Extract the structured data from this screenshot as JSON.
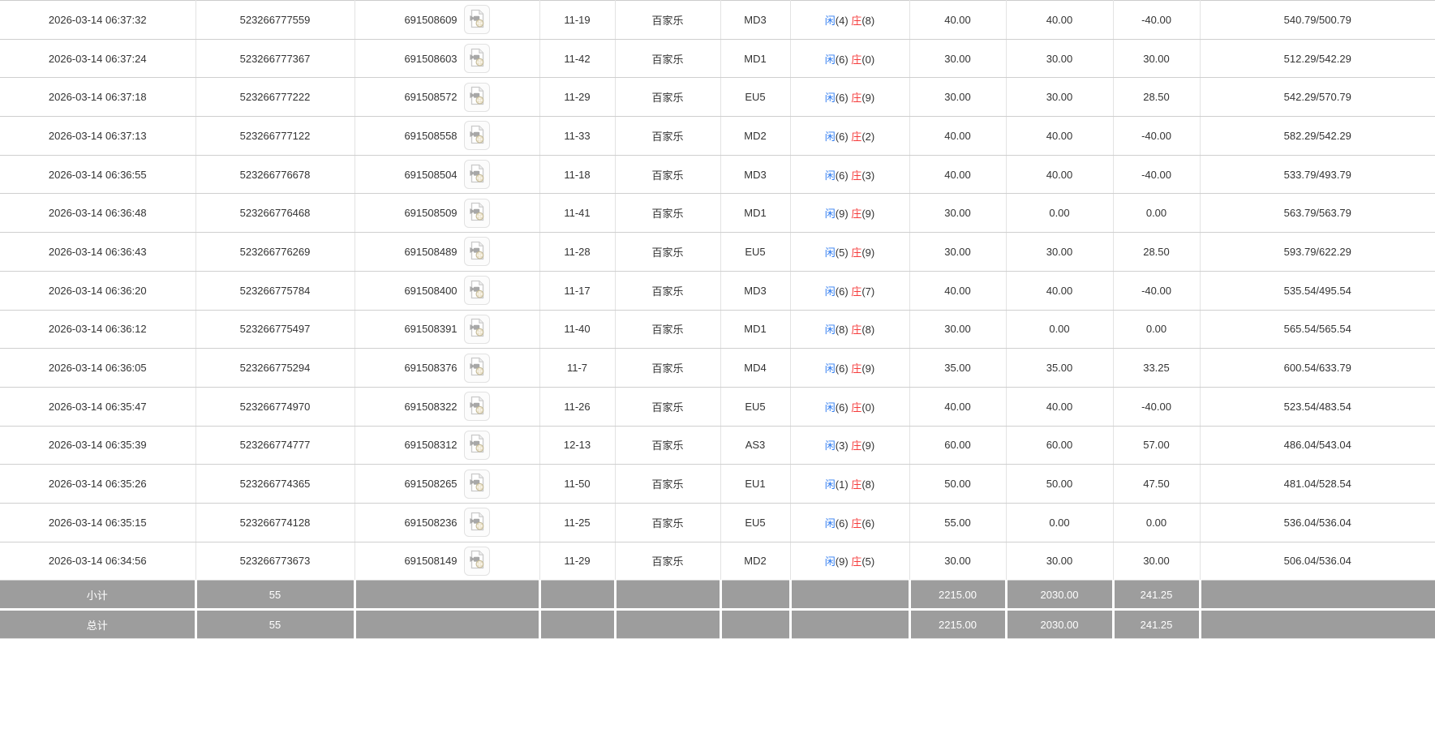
{
  "colors": {
    "accent_blue": "#2e7bf0",
    "accent_red": "#f53c3c",
    "body_text": "#333333",
    "footer_bg": "#9d9d9d",
    "footer_text": "#ffffff"
  },
  "icons": {
    "row_action": "video-replay-icon"
  },
  "table": {
    "rows": [
      {
        "time": "2026-03-14 06:37:32",
        "bet_id": "523266777559",
        "round_id": "691508609",
        "shoe_round": "11-19",
        "game": "百家乐",
        "table_code": "MD3",
        "player": "闲",
        "player_score": "4",
        "banker": "庄",
        "banker_score": "8",
        "bet": "40.00",
        "valid_bet": "40.00",
        "win_loss": "-40.00",
        "balance": "540.79/500.79"
      },
      {
        "time": "2026-03-14 06:37:24",
        "bet_id": "523266777367",
        "round_id": "691508603",
        "shoe_round": "11-42",
        "game": "百家乐",
        "table_code": "MD1",
        "player": "闲",
        "player_score": "6",
        "banker": "庄",
        "banker_score": "0",
        "bet": "30.00",
        "valid_bet": "30.00",
        "win_loss": "30.00",
        "balance": "512.29/542.29"
      },
      {
        "time": "2026-03-14 06:37:18",
        "bet_id": "523266777222",
        "round_id": "691508572",
        "shoe_round": "11-29",
        "game": "百家乐",
        "table_code": "EU5",
        "player": "闲",
        "player_score": "6",
        "banker": "庄",
        "banker_score": "9",
        "bet": "30.00",
        "valid_bet": "30.00",
        "win_loss": "28.50",
        "balance": "542.29/570.79"
      },
      {
        "time": "2026-03-14 06:37:13",
        "bet_id": "523266777122",
        "round_id": "691508558",
        "shoe_round": "11-33",
        "game": "百家乐",
        "table_code": "MD2",
        "player": "闲",
        "player_score": "6",
        "banker": "庄",
        "banker_score": "2",
        "bet": "40.00",
        "valid_bet": "40.00",
        "win_loss": "-40.00",
        "balance": "582.29/542.29"
      },
      {
        "time": "2026-03-14 06:36:55",
        "bet_id": "523266776678",
        "round_id": "691508504",
        "shoe_round": "11-18",
        "game": "百家乐",
        "table_code": "MD3",
        "player": "闲",
        "player_score": "6",
        "banker": "庄",
        "banker_score": "3",
        "bet": "40.00",
        "valid_bet": "40.00",
        "win_loss": "-40.00",
        "balance": "533.79/493.79"
      },
      {
        "time": "2026-03-14 06:36:48",
        "bet_id": "523266776468",
        "round_id": "691508509",
        "shoe_round": "11-41",
        "game": "百家乐",
        "table_code": "MD1",
        "player": "闲",
        "player_score": "9",
        "banker": "庄",
        "banker_score": "9",
        "bet": "30.00",
        "valid_bet": "0.00",
        "win_loss": "0.00",
        "balance": "563.79/563.79"
      },
      {
        "time": "2026-03-14 06:36:43",
        "bet_id": "523266776269",
        "round_id": "691508489",
        "shoe_round": "11-28",
        "game": "百家乐",
        "table_code": "EU5",
        "player": "闲",
        "player_score": "5",
        "banker": "庄",
        "banker_score": "9",
        "bet": "30.00",
        "valid_bet": "30.00",
        "win_loss": "28.50",
        "balance": "593.79/622.29"
      },
      {
        "time": "2026-03-14 06:36:20",
        "bet_id": "523266775784",
        "round_id": "691508400",
        "shoe_round": "11-17",
        "game": "百家乐",
        "table_code": "MD3",
        "player": "闲",
        "player_score": "6",
        "banker": "庄",
        "banker_score": "7",
        "bet": "40.00",
        "valid_bet": "40.00",
        "win_loss": "-40.00",
        "balance": "535.54/495.54"
      },
      {
        "time": "2026-03-14 06:36:12",
        "bet_id": "523266775497",
        "round_id": "691508391",
        "shoe_round": "11-40",
        "game": "百家乐",
        "table_code": "MD1",
        "player": "闲",
        "player_score": "8",
        "banker": "庄",
        "banker_score": "8",
        "bet": "30.00",
        "valid_bet": "0.00",
        "win_loss": "0.00",
        "balance": "565.54/565.54"
      },
      {
        "time": "2026-03-14 06:36:05",
        "bet_id": "523266775294",
        "round_id": "691508376",
        "shoe_round": "11-7",
        "game": "百家乐",
        "table_code": "MD4",
        "player": "闲",
        "player_score": "6",
        "banker": "庄",
        "banker_score": "9",
        "bet": "35.00",
        "valid_bet": "35.00",
        "win_loss": "33.25",
        "balance": "600.54/633.79"
      },
      {
        "time": "2026-03-14 06:35:47",
        "bet_id": "523266774970",
        "round_id": "691508322",
        "shoe_round": "11-26",
        "game": "百家乐",
        "table_code": "EU5",
        "player": "闲",
        "player_score": "6",
        "banker": "庄",
        "banker_score": "0",
        "bet": "40.00",
        "valid_bet": "40.00",
        "win_loss": "-40.00",
        "balance": "523.54/483.54"
      },
      {
        "time": "2026-03-14 06:35:39",
        "bet_id": "523266774777",
        "round_id": "691508312",
        "shoe_round": "12-13",
        "game": "百家乐",
        "table_code": "AS3",
        "player": "闲",
        "player_score": "3",
        "banker": "庄",
        "banker_score": "9",
        "bet": "60.00",
        "valid_bet": "60.00",
        "win_loss": "57.00",
        "balance": "486.04/543.04"
      },
      {
        "time": "2026-03-14 06:35:26",
        "bet_id": "523266774365",
        "round_id": "691508265",
        "shoe_round": "11-50",
        "game": "百家乐",
        "table_code": "EU1",
        "player": "闲",
        "player_score": "1",
        "banker": "庄",
        "banker_score": "8",
        "bet": "50.00",
        "valid_bet": "50.00",
        "win_loss": "47.50",
        "balance": "481.04/528.54"
      },
      {
        "time": "2026-03-14 06:35:15",
        "bet_id": "523266774128",
        "round_id": "691508236",
        "shoe_round": "11-25",
        "game": "百家乐",
        "table_code": "EU5",
        "player": "闲",
        "player_score": "6",
        "banker": "庄",
        "banker_score": "6",
        "bet": "55.00",
        "valid_bet": "0.00",
        "win_loss": "0.00",
        "balance": "536.04/536.04"
      },
      {
        "time": "2026-03-14 06:34:56",
        "bet_id": "523266773673",
        "round_id": "691508149",
        "shoe_round": "11-29",
        "game": "百家乐",
        "table_code": "MD2",
        "player": "闲",
        "player_score": "9",
        "banker": "庄",
        "banker_score": "5",
        "bet": "30.00",
        "valid_bet": "30.00",
        "win_loss": "30.00",
        "balance": "506.04/536.04"
      }
    ],
    "footer_rows": [
      {
        "label": "小计",
        "count": "55",
        "bet": "2215.00",
        "valid_bet": "2030.00",
        "win_loss": "241.25"
      },
      {
        "label": "总计",
        "count": "55",
        "bet": "2215.00",
        "valid_bet": "2030.00",
        "win_loss": "241.25"
      }
    ]
  }
}
